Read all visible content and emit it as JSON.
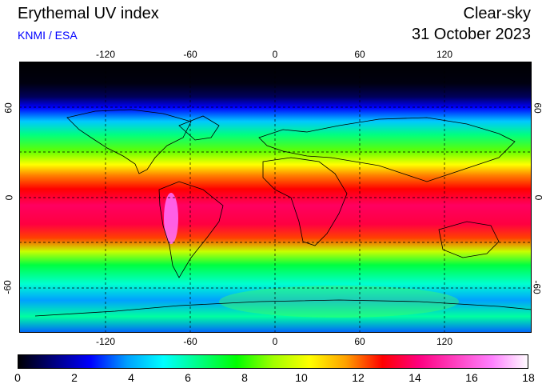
{
  "header": {
    "title": "Erythemal UV index",
    "credit": "KNMI / ESA",
    "sky_condition": "Clear-sky",
    "date": "31 October 2023"
  },
  "map": {
    "lon_labels": [
      "-120",
      "-60",
      "0",
      "60",
      "120"
    ],
    "lat_labels": [
      "60",
      "0",
      "-60"
    ]
  },
  "colorbar": {
    "ticks": [
      "0",
      "2",
      "4",
      "6",
      "8",
      "10",
      "12",
      "14",
      "16",
      "18"
    ],
    "min": 0,
    "max": 18,
    "colors": [
      "#000000",
      "#000080",
      "#0000ff",
      "#00a0ff",
      "#00ffff",
      "#00ff80",
      "#00ff00",
      "#a0ff00",
      "#ffff00",
      "#ffa000",
      "#ff0000",
      "#ff0080",
      "#ff40c0",
      "#ff80ff",
      "#ffffff"
    ]
  }
}
